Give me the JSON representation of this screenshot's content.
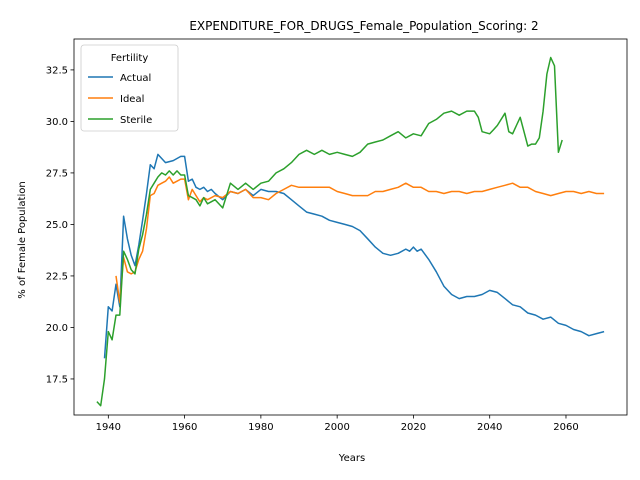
{
  "chart_data": {
    "type": "line",
    "title": "EXPENDITURE_FOR_DRUGS_Female_Population_Scoring: 2",
    "xlabel": "Years",
    "ylabel": "% of Female Population",
    "xlim": [
      1931,
      2076
    ],
    "ylim": [
      15.75,
      34.0
    ],
    "xticks": [
      1940,
      1960,
      1980,
      2000,
      2020,
      2040,
      2060
    ],
    "yticks": [
      17.5,
      20.0,
      22.5,
      25.0,
      27.5,
      30.0,
      32.5
    ],
    "legend": {
      "title": "Fertility",
      "placement": "top-left"
    },
    "grid": false,
    "series": [
      {
        "name": "Actual",
        "color": "#1f77b4",
        "x": [
          1939,
          1940,
          1941,
          1942,
          1943,
          1944,
          1945,
          1946,
          1947,
          1948,
          1949,
          1950,
          1951,
          1952,
          1953,
          1955,
          1957,
          1959,
          1960,
          1961,
          1962,
          1963,
          1964,
          1965,
          1966,
          1967,
          1968,
          1970,
          1972,
          1974,
          1976,
          1978,
          1980,
          1982,
          1984,
          1986,
          1988,
          1990,
          1992,
          1994,
          1996,
          1998,
          2000,
          2002,
          2004,
          2006,
          2008,
          2010,
          2012,
          2014,
          2016,
          2018,
          2019,
          2020,
          2021,
          2022,
          2024,
          2026,
          2028,
          2030,
          2032,
          2034,
          2036,
          2038,
          2040,
          2042,
          2044,
          2046,
          2048,
          2050,
          2052,
          2054,
          2056,
          2058,
          2060,
          2062,
          2064,
          2066,
          2068,
          2070
        ],
        "y": [
          18.5,
          21.0,
          20.8,
          22.1,
          21.0,
          25.4,
          24.3,
          23.5,
          23.0,
          24.0,
          25.2,
          26.5,
          27.9,
          27.7,
          28.4,
          28.0,
          28.1,
          28.3,
          28.3,
          27.1,
          27.2,
          26.8,
          26.7,
          26.8,
          26.6,
          26.7,
          26.5,
          26.2,
          26.6,
          26.5,
          26.7,
          26.4,
          26.7,
          26.6,
          26.6,
          26.5,
          26.2,
          25.9,
          25.6,
          25.5,
          25.4,
          25.2,
          25.1,
          25.0,
          24.9,
          24.7,
          24.3,
          23.9,
          23.6,
          23.5,
          23.6,
          23.8,
          23.7,
          23.9,
          23.7,
          23.8,
          23.3,
          22.7,
          22.0,
          21.6,
          21.4,
          21.5,
          21.5,
          21.6,
          21.8,
          21.7,
          21.4,
          21.1,
          21.0,
          20.7,
          20.6,
          20.4,
          20.5,
          20.2,
          20.1,
          19.9,
          19.8,
          19.6,
          19.7,
          19.8
        ]
      },
      {
        "name": "Ideal",
        "color": "#ff7f0e",
        "x": [
          1942,
          1943,
          1944,
          1945,
          1946,
          1947,
          1948,
          1949,
          1950,
          1951,
          1952,
          1953,
          1954,
          1955,
          1956,
          1957,
          1958,
          1959,
          1960,
          1961,
          1962,
          1963,
          1964,
          1965,
          1966,
          1968,
          1970,
          1972,
          1974,
          1976,
          1978,
          1980,
          1982,
          1984,
          1986,
          1988,
          1990,
          1992,
          1994,
          1996,
          1998,
          2000,
          2002,
          2004,
          2006,
          2008,
          2010,
          2012,
          2014,
          2016,
          2018,
          2019,
          2020,
          2022,
          2024,
          2026,
          2028,
          2030,
          2032,
          2034,
          2036,
          2038,
          2040,
          2042,
          2044,
          2046,
          2048,
          2050,
          2052,
          2054,
          2056,
          2058,
          2060,
          2062,
          2064,
          2066,
          2068,
          2070
        ],
        "y": [
          22.5,
          21.2,
          23.4,
          22.7,
          22.6,
          22.7,
          23.3,
          23.7,
          24.8,
          26.4,
          26.5,
          26.9,
          27.0,
          27.1,
          27.3,
          27.0,
          27.1,
          27.2,
          27.2,
          26.2,
          26.7,
          26.4,
          26.1,
          26.3,
          26.2,
          26.4,
          26.3,
          26.6,
          26.5,
          26.7,
          26.3,
          26.3,
          26.2,
          26.5,
          26.7,
          26.9,
          26.8,
          26.8,
          26.8,
          26.8,
          26.8,
          26.6,
          26.5,
          26.4,
          26.4,
          26.4,
          26.6,
          26.6,
          26.7,
          26.8,
          27.0,
          26.9,
          26.8,
          26.8,
          26.6,
          26.6,
          26.5,
          26.6,
          26.6,
          26.5,
          26.6,
          26.6,
          26.7,
          26.8,
          26.9,
          27.0,
          26.8,
          26.8,
          26.6,
          26.5,
          26.4,
          26.5,
          26.6,
          26.6,
          26.5,
          26.6,
          26.5,
          26.5
        ]
      },
      {
        "name": "Sterile",
        "color": "#2ca02c",
        "x": [
          1937,
          1938,
          1939,
          1940,
          1941,
          1942,
          1943,
          1944,
          1945,
          1946,
          1947,
          1948,
          1949,
          1950,
          1951,
          1952,
          1953,
          1954,
          1955,
          1956,
          1957,
          1958,
          1959,
          1960,
          1961,
          1962,
          1963,
          1964,
          1965,
          1966,
          1968,
          1970,
          1972,
          1974,
          1976,
          1978,
          1980,
          1982,
          1984,
          1986,
          1988,
          1990,
          1992,
          1994,
          1996,
          1998,
          2000,
          2002,
          2004,
          2006,
          2008,
          2010,
          2012,
          2014,
          2016,
          2018,
          2020,
          2022,
          2024,
          2026,
          2028,
          2030,
          2032,
          2034,
          2036,
          2037,
          2038,
          2040,
          2041,
          2042,
          2044,
          2045,
          2046,
          2047,
          2048,
          2049,
          2050,
          2051,
          2052,
          2053,
          2054,
          2055,
          2056,
          2057,
          2058,
          2059
        ],
        "y": [
          16.4,
          16.2,
          17.5,
          19.8,
          19.4,
          20.6,
          20.6,
          23.7,
          23.3,
          22.8,
          22.6,
          23.8,
          24.5,
          25.5,
          26.7,
          27.0,
          27.3,
          27.5,
          27.4,
          27.6,
          27.4,
          27.6,
          27.4,
          27.4,
          26.4,
          26.3,
          26.2,
          25.9,
          26.3,
          26.0,
          26.2,
          25.8,
          27.0,
          26.7,
          27.0,
          26.7,
          27.0,
          27.1,
          27.5,
          27.7,
          28.0,
          28.4,
          28.6,
          28.4,
          28.6,
          28.4,
          28.5,
          28.4,
          28.3,
          28.5,
          28.9,
          29.0,
          29.1,
          29.3,
          29.5,
          29.2,
          29.4,
          29.3,
          29.9,
          30.1,
          30.4,
          30.5,
          30.3,
          30.5,
          30.5,
          30.2,
          29.5,
          29.4,
          29.6,
          29.8,
          30.4,
          29.5,
          29.4,
          29.8,
          30.2,
          29.5,
          28.8,
          28.9,
          28.9,
          29.2,
          30.5,
          32.3,
          33.1,
          32.7,
          28.5,
          29.1
        ]
      }
    ]
  }
}
